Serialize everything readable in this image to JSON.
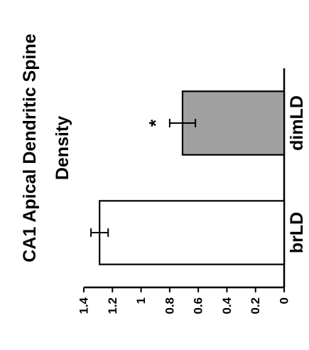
{
  "chart_data": {
    "type": "bar",
    "orientation": "rotated-vertical",
    "title_lines": [
      "CA1 Apical Dendritic Spine",
      "Density"
    ],
    "categories": [
      "brLD",
      "dimLD"
    ],
    "values": [
      1.29,
      0.71
    ],
    "errors": [
      0.06,
      0.09
    ],
    "significance": [
      "",
      "*"
    ],
    "bar_colors": [
      "#ffffff",
      "#a0a0a0"
    ],
    "ylim": [
      0,
      1.4
    ],
    "yticks": [
      "0",
      "0.2",
      "0.4",
      "0.6",
      "0.8",
      "1",
      "1.2",
      "1.4"
    ],
    "grid": false,
    "legend": "none"
  }
}
